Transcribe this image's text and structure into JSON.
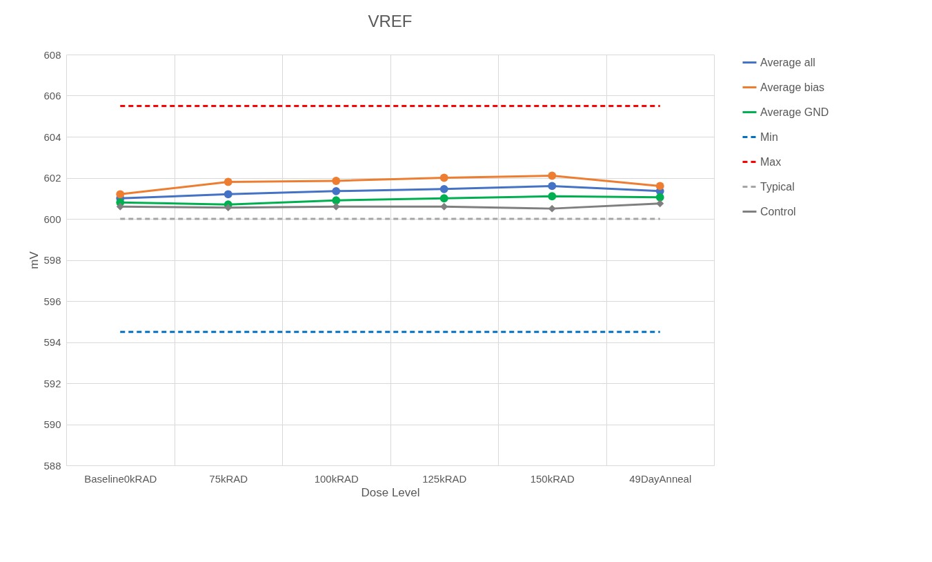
{
  "chart_data": {
    "type": "line",
    "title": "VREF",
    "xlabel": "Dose Level",
    "ylabel": "mV",
    "categories": [
      "Baseline0kRAD",
      "75kRAD",
      "100kRAD",
      "125kRAD",
      "150kRAD",
      "49DayAnneal"
    ],
    "series": [
      {
        "name": "Average all",
        "color": "#4472c4",
        "marker": "circle",
        "line_style": "solid",
        "values": [
          601.0,
          601.2,
          601.35,
          601.45,
          601.6,
          601.35
        ]
      },
      {
        "name": "Average bias",
        "color": "#ed7d31",
        "marker": "circle",
        "line_style": "solid",
        "values": [
          601.2,
          601.8,
          601.85,
          602.0,
          602.1,
          601.6
        ]
      },
      {
        "name": "Average GND",
        "color": "#00b050",
        "marker": "circle",
        "line_style": "solid",
        "values": [
          600.8,
          600.7,
          600.9,
          601.0,
          601.1,
          601.05
        ]
      },
      {
        "name": "Min",
        "color": "#0070c0",
        "marker": "none",
        "line_style": "dashed",
        "values": [
          594.5,
          594.5,
          594.5,
          594.5,
          594.5,
          594.5
        ]
      },
      {
        "name": "Max",
        "color": "#ff0000",
        "marker": "none",
        "line_style": "dashed",
        "values": [
          605.5,
          605.5,
          605.5,
          605.5,
          605.5,
          605.5
        ]
      },
      {
        "name": "Typical",
        "color": "#a5a5a5",
        "marker": "none",
        "line_style": "dashed",
        "values": [
          600,
          600,
          600,
          600,
          600,
          600
        ]
      },
      {
        "name": "Control",
        "color": "#7f7f7f",
        "marker": "diamond",
        "line_style": "solid",
        "values": [
          600.6,
          600.55,
          600.6,
          600.6,
          600.5,
          600.75
        ]
      }
    ],
    "ylim": [
      588,
      608
    ],
    "yticks": [
      588,
      590,
      592,
      594,
      596,
      598,
      600,
      602,
      604,
      606,
      608
    ],
    "grid": true,
    "legend": "right"
  }
}
